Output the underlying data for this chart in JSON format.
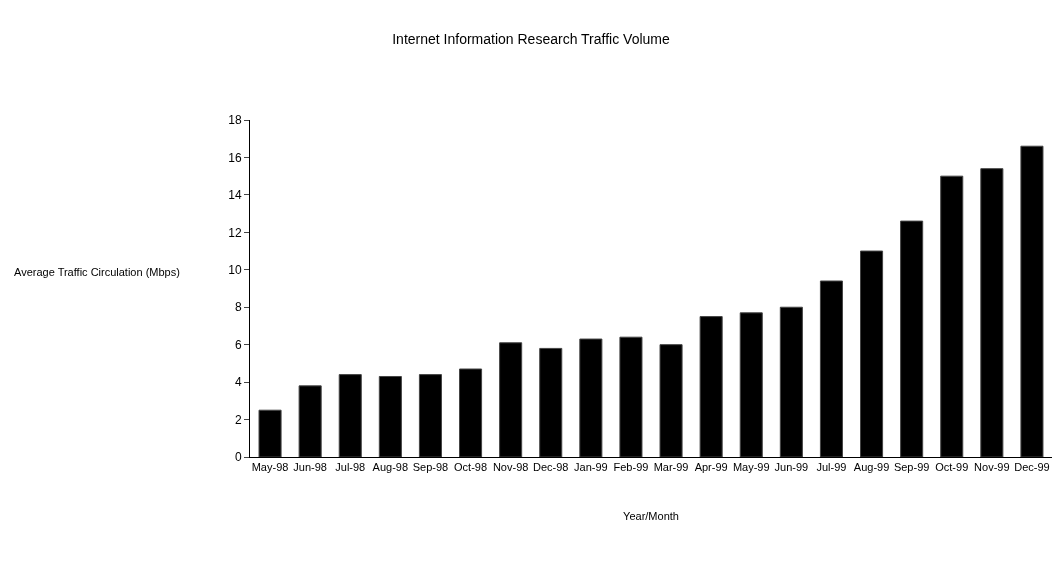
{
  "chart_data": {
    "type": "bar",
    "title": "Internet Information Research Traffic Volume",
    "xlabel": "Year/Month",
    "ylabel": "Average Traffic Circulation (Mbps)",
    "categories": [
      "May-98",
      "Jun-98",
      "Jul-98",
      "Aug-98",
      "Sep-98",
      "Oct-98",
      "Nov-98",
      "Dec-98",
      "Jan-99",
      "Feb-99",
      "Mar-99",
      "Apr-99",
      "May-99",
      "Jun-99",
      "Jul-99",
      "Aug-99",
      "Sep-99",
      "Oct-99",
      "Nov-99",
      "Dec-99"
    ],
    "values": [
      2.5,
      3.8,
      4.4,
      4.3,
      4.4,
      4.7,
      6.1,
      5.8,
      6.3,
      6.4,
      6.0,
      7.5,
      7.7,
      8.0,
      9.4,
      11.0,
      12.6,
      15.0,
      15.4,
      16.6
    ],
    "color": "#000000",
    "ylim": [
      0,
      18
    ],
    "yticks": [
      0,
      2,
      4,
      6,
      8,
      10,
      12,
      14,
      16,
      18
    ],
    "grid": false,
    "legend": false
  }
}
